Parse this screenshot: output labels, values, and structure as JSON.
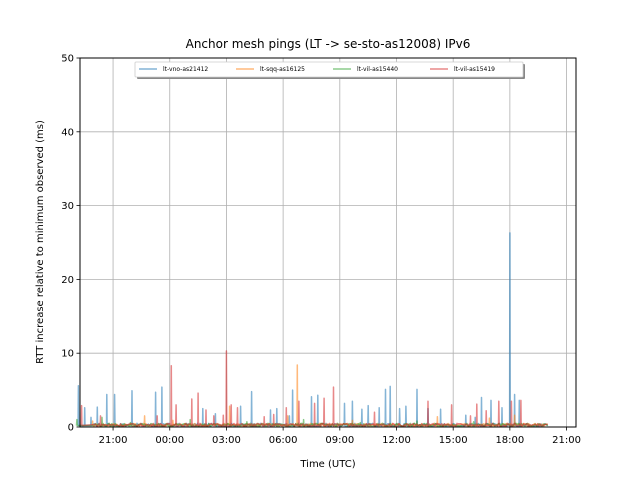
{
  "chart_data": {
    "type": "line",
    "title": "Anchor mesh pings (LT -> se-sto-as12008) IPv6",
    "xlabel": "Time (UTC)",
    "ylabel": "RTT increase relative to minimum observed (ms)",
    "ylim": [
      0,
      50
    ],
    "xlim": [
      "19:15",
      "21:30 (+1 day)"
    ],
    "grid": true,
    "legend_position": "top-center",
    "x_ticks": [
      "21:00",
      "00:00",
      "03:00",
      "06:00",
      "09:00",
      "12:00",
      "15:00",
      "18:00",
      "21:00"
    ],
    "y_ticks": [
      0,
      10,
      20,
      30,
      40,
      50
    ],
    "series": [
      {
        "name": "lt-vno-as21412",
        "color": "#1f77b4",
        "spikes": [
          [
            "20:10",
            2.7
          ],
          [
            "20:40",
            4.4
          ],
          [
            "21:05",
            4.4
          ],
          [
            "22:00",
            4.9
          ],
          [
            "23:15",
            4.7
          ],
          [
            "23:35",
            5.4
          ],
          [
            "01:45",
            2.5
          ],
          [
            "02:25",
            1.8
          ],
          [
            "03:45",
            2.8
          ],
          [
            "04:20",
            4.8
          ],
          [
            "05:20",
            2.3
          ],
          [
            "05:40",
            2.5
          ],
          [
            "06:20",
            1.5
          ],
          [
            "06:30",
            5.0
          ],
          [
            "07:30",
            4.1
          ],
          [
            "07:50",
            4.3
          ],
          [
            "09:15",
            3.2
          ],
          [
            "09:40",
            3.5
          ],
          [
            "10:10",
            2.4
          ],
          [
            "10:30",
            2.9
          ],
          [
            "11:05",
            2.6
          ],
          [
            "11:25",
            5.1
          ],
          [
            "11:40",
            5.5
          ],
          [
            "12:10",
            2.5
          ],
          [
            "12:30",
            2.8
          ],
          [
            "13:05",
            5.1
          ],
          [
            "13:40",
            2.5
          ],
          [
            "14:20",
            2.4
          ],
          [
            "15:40",
            1.6
          ],
          [
            "16:10",
            1.3
          ],
          [
            "16:30",
            4.0
          ],
          [
            "17:00",
            3.6
          ],
          [
            "17:35",
            2.6
          ],
          [
            "18:00",
            26.3
          ],
          [
            "18:15",
            4.4
          ],
          [
            "18:30",
            3.6
          ],
          [
            "19:10",
            5.6
          ],
          [
            "19:30",
            2.6
          ],
          [
            "19:50",
            1.3
          ]
        ]
      },
      {
        "name": "lt-sqq-as16125",
        "color": "#ff7f0e",
        "spikes": [
          [
            "22:40",
            1.5
          ],
          [
            "00:10",
            0.9
          ],
          [
            "03:10",
            2.8
          ],
          [
            "06:15",
            1.5
          ],
          [
            "06:45",
            8.4
          ],
          [
            "09:40",
            0.9
          ],
          [
            "14:10",
            1.4
          ],
          [
            "16:55",
            1.2
          ],
          [
            "18:15",
            1.6
          ],
          [
            "19:55",
            0.8
          ]
        ]
      },
      {
        "name": "lt-vil-as15440",
        "color": "#2ca02c",
        "spikes": [
          [
            "20:25",
            1.3
          ],
          [
            "21:55",
            0.6
          ],
          [
            "01:05",
            1.0
          ],
          [
            "04:05",
            0.7
          ],
          [
            "07:05",
            1.0
          ],
          [
            "10:05",
            0.6
          ],
          [
            "13:05",
            0.8
          ],
          [
            "16:05",
            0.7
          ],
          [
            "19:05",
            1.0
          ]
        ]
      },
      {
        "name": "lt-vil-as15419",
        "color": "#d62728",
        "spikes": [
          [
            "20:20",
            1.5
          ],
          [
            "23:20",
            1.5
          ],
          [
            "00:05",
            8.3
          ],
          [
            "00:20",
            3.0
          ],
          [
            "01:10",
            3.8
          ],
          [
            "01:30",
            4.6
          ],
          [
            "01:55",
            2.3
          ],
          [
            "02:20",
            1.5
          ],
          [
            "02:50",
            1.6
          ],
          [
            "03:00",
            10.3
          ],
          [
            "03:15",
            3.0
          ],
          [
            "03:35",
            2.6
          ],
          [
            "05:00",
            1.4
          ],
          [
            "05:30",
            1.7
          ],
          [
            "06:10",
            2.6
          ],
          [
            "06:50",
            3.5
          ],
          [
            "07:40",
            3.2
          ],
          [
            "08:10",
            3.9
          ],
          [
            "08:40",
            5.4
          ],
          [
            "10:50",
            2.0
          ],
          [
            "13:40",
            3.5
          ],
          [
            "14:55",
            3.0
          ],
          [
            "15:55",
            1.5
          ],
          [
            "16:15",
            3.1
          ],
          [
            "16:45",
            2.2
          ],
          [
            "17:25",
            3.5
          ],
          [
            "18:05",
            3.5
          ],
          [
            "18:35",
            3.6
          ],
          [
            "19:20",
            2.9
          ]
        ]
      }
    ]
  }
}
